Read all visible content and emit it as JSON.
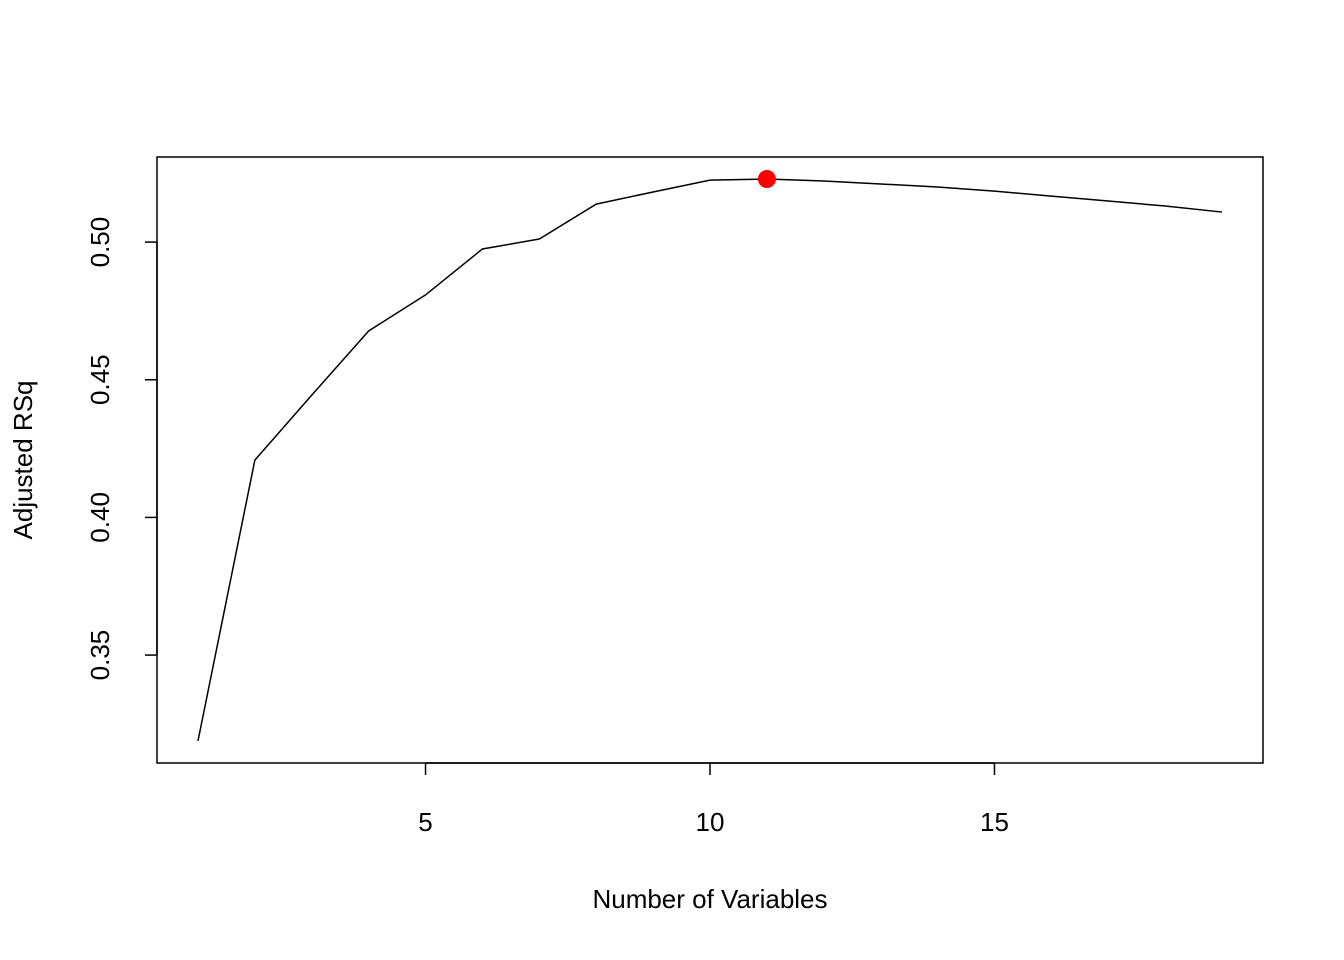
{
  "chart_data": {
    "type": "line",
    "x_label": "Number of Variables",
    "y_label": "Adjusted RSq",
    "x": [
      1,
      2,
      3,
      4,
      5,
      6,
      7,
      8,
      9,
      10,
      11,
      12,
      13,
      14,
      15,
      16,
      17,
      18,
      19
    ],
    "values": [
      0.3188,
      0.4208,
      0.4444,
      0.4677,
      0.4808,
      0.4975,
      0.5011,
      0.5138,
      0.5182,
      0.5225,
      0.5229,
      0.5222,
      0.5211,
      0.52,
      0.5185,
      0.5167,
      0.5149,
      0.5131,
      0.5109
    ],
    "color": "#000000",
    "highlight": {
      "x": 11,
      "y": 0.5229,
      "color": "#ff0000"
    },
    "xlim": [
      0.28,
      19.72
    ],
    "ylim": [
      0.3108,
      0.5309
    ],
    "xticks": [
      5,
      10,
      15
    ],
    "yticks": [
      0.35,
      {
        "value": 0.4,
        "label": "0.40"
      },
      0.45,
      {
        "value": 0.5,
        "label": "0.50"
      }
    ]
  }
}
